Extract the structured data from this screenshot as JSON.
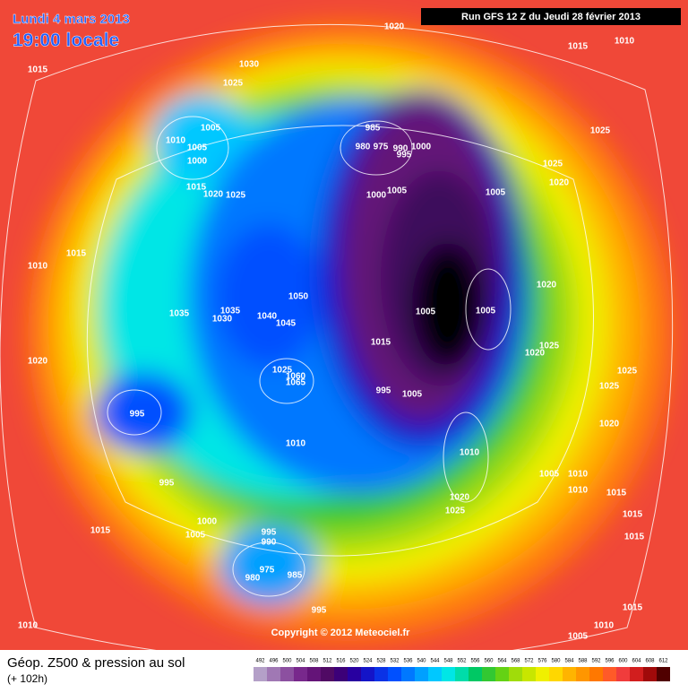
{
  "header": {
    "date": "Lundi 4 mars 2013",
    "time": "19:00 locale",
    "run": "Run GFS 12 Z du Jeudi 28 février 2013"
  },
  "copyright": "Copyright © 2012 Meteociel.fr",
  "footer": {
    "title": "Géop. Z500 & pression au sol",
    "lead": "(+ 102h)"
  },
  "colorbar": {
    "ticks": [
      492,
      496,
      500,
      504,
      508,
      512,
      516,
      520,
      524,
      528,
      532,
      536,
      540,
      544,
      548,
      552,
      556,
      560,
      564,
      568,
      572,
      576,
      580,
      584,
      588,
      592,
      596,
      600,
      604,
      608,
      612
    ],
    "colors": [
      "#b4a0c8",
      "#a078b4",
      "#8c50a0",
      "#78288c",
      "#641478",
      "#500a64",
      "#3c0078",
      "#2800a0",
      "#1414c8",
      "#0a32e6",
      "#0050ff",
      "#0078ff",
      "#00a0ff",
      "#00c8ff",
      "#00e6e6",
      "#00dcaa",
      "#00c864",
      "#32c832",
      "#64d214",
      "#a0dc0a",
      "#c8e600",
      "#f0f000",
      "#ffd700",
      "#ffb400",
      "#ff9600",
      "#ff7800",
      "#ff5a28",
      "#f03c3c",
      "#d21e1e",
      "#a00a0a",
      "#500000"
    ]
  },
  "isobars": [
    "1020",
    "1015",
    "1010",
    "1015",
    "1030",
    "1025",
    "1005",
    "1010",
    "1005",
    "1000",
    "985",
    "980",
    "975",
    "990",
    "1000",
    "995",
    "1025",
    "1025",
    "1020",
    "1015",
    "1020",
    "1025",
    "1000",
    "1005",
    "1005",
    "1015",
    "1010",
    "1020",
    "1050",
    "1005",
    "1005",
    "1035",
    "1035",
    "1030",
    "1040",
    "1045",
    "1015",
    "1025",
    "1020",
    "1020",
    "1025",
    "1025",
    "1060",
    "1065",
    "995",
    "1005",
    "1025",
    "995",
    "1020",
    "1010",
    "1010",
    "1005",
    "1010",
    "1010",
    "1015",
    "995",
    "1020",
    "1025",
    "1015",
    "1000",
    "1005",
    "995",
    "990",
    "1015",
    "1015",
    "975",
    "980",
    "985",
    "995",
    "1015",
    "1010",
    "1010",
    "1005"
  ]
}
